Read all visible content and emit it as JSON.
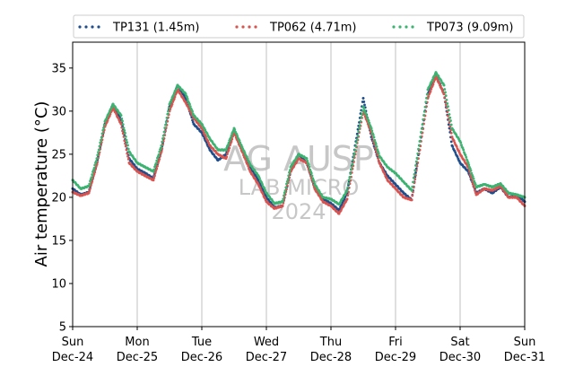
{
  "chart_data": {
    "type": "scatter",
    "ylabel": "Air temperature (°C)",
    "xlabel": "",
    "ylim": [
      5,
      38
    ],
    "yticks": [
      5,
      10,
      15,
      20,
      25,
      30,
      35
    ],
    "xlim": [
      "2023-12-24 00:00",
      "2023-12-31 00:00"
    ],
    "x_unit": "date-time",
    "xtick_labels": [
      {
        "x": "2023-12-24 00:00",
        "day": "Sun",
        "date": "Dec-24"
      },
      {
        "x": "2023-12-25 00:00",
        "day": "Mon",
        "date": "Dec-25"
      },
      {
        "x": "2023-12-26 00:00",
        "day": "Tue",
        "date": "Dec-26"
      },
      {
        "x": "2023-12-27 00:00",
        "day": "Wed",
        "date": "Dec-27"
      },
      {
        "x": "2023-12-28 00:00",
        "day": "Thu",
        "date": "Dec-28"
      },
      {
        "x": "2023-12-29 00:00",
        "day": "Fri",
        "date": "Dec-29"
      },
      {
        "x": "2023-12-30 00:00",
        "day": "Sat",
        "date": "Dec-30"
      },
      {
        "x": "2023-12-31 00:00",
        "day": "Sun",
        "date": "Dec-31"
      }
    ],
    "grid": "vertical at day boundaries",
    "legend_placement": "top, above plot",
    "watermark": [
      "AG AUSP",
      "LAB MICRO",
      "2024"
    ],
    "series": [
      {
        "name": "TP131 (1.45m)",
        "color": "#1f4e8c",
        "points": [
          [
            "2023-12-24 00:00",
            21.0
          ],
          [
            "2023-12-24 03:00",
            20.3
          ],
          [
            "2023-12-24 06:00",
            20.6
          ],
          [
            "2023-12-24 09:00",
            24.0
          ],
          [
            "2023-12-24 12:00",
            28.5
          ],
          [
            "2023-12-24 15:00",
            30.8
          ],
          [
            "2023-12-24 18:00",
            29.0
          ],
          [
            "2023-12-24 21:00",
            24.5
          ],
          [
            "2023-12-25 00:00",
            23.3
          ],
          [
            "2023-12-25 03:00",
            22.8
          ],
          [
            "2023-12-25 06:00",
            22.2
          ],
          [
            "2023-12-25 09:00",
            25.5
          ],
          [
            "2023-12-25 12:00",
            30.5
          ],
          [
            "2023-12-25 15:00",
            33.0
          ],
          [
            "2023-12-25 18:00",
            31.5
          ],
          [
            "2023-12-25 21:00",
            28.5
          ],
          [
            "2023-12-26 00:00",
            27.5
          ],
          [
            "2023-12-26 03:00",
            25.5
          ],
          [
            "2023-12-26 06:00",
            24.3
          ],
          [
            "2023-12-26 09:00",
            25.0
          ],
          [
            "2023-12-26 12:00",
            27.8
          ],
          [
            "2023-12-26 15:00",
            25.5
          ],
          [
            "2023-12-26 18:00",
            23.5
          ],
          [
            "2023-12-26 21:00",
            22.0
          ],
          [
            "2023-12-27 00:00",
            20.0
          ],
          [
            "2023-12-27 03:00",
            18.8
          ],
          [
            "2023-12-27 06:00",
            19.0
          ],
          [
            "2023-12-27 09:00",
            23.0
          ],
          [
            "2023-12-27 12:00",
            25.0
          ],
          [
            "2023-12-27 15:00",
            24.0
          ],
          [
            "2023-12-27 18:00",
            21.0
          ],
          [
            "2023-12-27 21:00",
            19.8
          ],
          [
            "2023-12-28 00:00",
            19.3
          ],
          [
            "2023-12-28 03:00",
            18.5
          ],
          [
            "2023-12-28 06:00",
            20.5
          ],
          [
            "2023-12-28 09:00",
            26.0
          ],
          [
            "2023-12-28 12:00",
            31.5
          ],
          [
            "2023-12-28 15:00",
            27.0
          ],
          [
            "2023-12-28 18:00",
            24.0
          ],
          [
            "2023-12-28 21:00",
            22.5
          ],
          [
            "2023-12-29 00:00",
            21.5
          ],
          [
            "2023-12-29 03:00",
            20.5
          ],
          [
            "2023-12-29 06:00",
            19.7
          ],
          [
            "2023-12-29 09:00",
            26.0
          ],
          [
            "2023-12-29 12:00",
            32.0
          ],
          [
            "2023-12-29 15:00",
            34.2
          ],
          [
            "2023-12-29 18:00",
            32.0
          ],
          [
            "2023-12-29 21:00",
            26.0
          ],
          [
            "2023-12-30 00:00",
            24.0
          ],
          [
            "2023-12-30 03:00",
            23.0
          ],
          [
            "2023-12-30 06:00",
            20.5
          ],
          [
            "2023-12-30 09:00",
            21.0
          ],
          [
            "2023-12-30 12:00",
            20.5
          ],
          [
            "2023-12-30 15:00",
            21.2
          ],
          [
            "2023-12-30 18:00",
            20.0
          ],
          [
            "2023-12-30 21:00",
            20.3
          ],
          [
            "2023-12-31 00:00",
            19.5
          ]
        ]
      },
      {
        "name": "TP062 (4.71m)",
        "color": "#d9534f",
        "points": [
          [
            "2023-12-24 00:00",
            20.6
          ],
          [
            "2023-12-24 03:00",
            20.2
          ],
          [
            "2023-12-24 06:00",
            20.5
          ],
          [
            "2023-12-24 09:00",
            23.8
          ],
          [
            "2023-12-24 12:00",
            28.2
          ],
          [
            "2023-12-24 15:00",
            30.4
          ],
          [
            "2023-12-24 18:00",
            28.5
          ],
          [
            "2023-12-24 21:00",
            24.0
          ],
          [
            "2023-12-25 00:00",
            23.0
          ],
          [
            "2023-12-25 03:00",
            22.5
          ],
          [
            "2023-12-25 06:00",
            22.0
          ],
          [
            "2023-12-25 09:00",
            25.3
          ],
          [
            "2023-12-25 12:00",
            30.0
          ],
          [
            "2023-12-25 15:00",
            32.5
          ],
          [
            "2023-12-25 18:00",
            31.0
          ],
          [
            "2023-12-25 21:00",
            29.2
          ],
          [
            "2023-12-26 00:00",
            28.0
          ],
          [
            "2023-12-26 03:00",
            26.0
          ],
          [
            "2023-12-26 06:00",
            25.0
          ],
          [
            "2023-12-26 09:00",
            24.5
          ],
          [
            "2023-12-26 12:00",
            27.5
          ],
          [
            "2023-12-26 15:00",
            25.3
          ],
          [
            "2023-12-26 18:00",
            23.0
          ],
          [
            "2023-12-26 21:00",
            21.5
          ],
          [
            "2023-12-27 00:00",
            19.5
          ],
          [
            "2023-12-27 03:00",
            18.7
          ],
          [
            "2023-12-27 06:00",
            19.0
          ],
          [
            "2023-12-27 09:00",
            23.0
          ],
          [
            "2023-12-27 12:00",
            24.5
          ],
          [
            "2023-12-27 15:00",
            24.0
          ],
          [
            "2023-12-27 18:00",
            21.0
          ],
          [
            "2023-12-27 21:00",
            19.5
          ],
          [
            "2023-12-28 00:00",
            19.0
          ],
          [
            "2023-12-28 03:00",
            18.1
          ],
          [
            "2023-12-28 06:00",
            19.8
          ],
          [
            "2023-12-28 09:00",
            25.0
          ],
          [
            "2023-12-28 12:00",
            30.0
          ],
          [
            "2023-12-28 15:00",
            27.5
          ],
          [
            "2023-12-28 18:00",
            24.0
          ],
          [
            "2023-12-28 21:00",
            22.0
          ],
          [
            "2023-12-29 00:00",
            21.0
          ],
          [
            "2023-12-29 03:00",
            20.0
          ],
          [
            "2023-12-29 06:00",
            19.7
          ],
          [
            "2023-12-29 09:00",
            25.5
          ],
          [
            "2023-12-29 12:00",
            31.5
          ],
          [
            "2023-12-29 15:00",
            34.0
          ],
          [
            "2023-12-29 18:00",
            32.0
          ],
          [
            "2023-12-29 21:00",
            27.0
          ],
          [
            "2023-12-30 00:00",
            25.0
          ],
          [
            "2023-12-30 03:00",
            23.5
          ],
          [
            "2023-12-30 06:00",
            20.3
          ],
          [
            "2023-12-30 09:00",
            21.0
          ],
          [
            "2023-12-30 12:00",
            20.8
          ],
          [
            "2023-12-30 15:00",
            21.3
          ],
          [
            "2023-12-30 18:00",
            20.0
          ],
          [
            "2023-12-30 21:00",
            20.0
          ],
          [
            "2023-12-31 00:00",
            19.0
          ]
        ]
      },
      {
        "name": "TP073 (9.09m)",
        "color": "#3cb371",
        "points": [
          [
            "2023-12-24 00:00",
            22.0
          ],
          [
            "2023-12-24 03:00",
            21.0
          ],
          [
            "2023-12-24 06:00",
            21.3
          ],
          [
            "2023-12-24 09:00",
            24.5
          ],
          [
            "2023-12-24 12:00",
            28.8
          ],
          [
            "2023-12-24 15:00",
            30.8
          ],
          [
            "2023-12-24 18:00",
            29.5
          ],
          [
            "2023-12-24 21:00",
            25.3
          ],
          [
            "2023-12-25 00:00",
            24.0
          ],
          [
            "2023-12-25 03:00",
            23.5
          ],
          [
            "2023-12-25 06:00",
            23.0
          ],
          [
            "2023-12-25 09:00",
            26.0
          ],
          [
            "2023-12-25 12:00",
            30.8
          ],
          [
            "2023-12-25 15:00",
            33.0
          ],
          [
            "2023-12-25 18:00",
            32.0
          ],
          [
            "2023-12-25 21:00",
            29.5
          ],
          [
            "2023-12-26 00:00",
            28.5
          ],
          [
            "2023-12-26 03:00",
            26.8
          ],
          [
            "2023-12-26 06:00",
            25.5
          ],
          [
            "2023-12-26 09:00",
            25.5
          ],
          [
            "2023-12-26 12:00",
            28.0
          ],
          [
            "2023-12-26 15:00",
            25.8
          ],
          [
            "2023-12-26 18:00",
            23.8
          ],
          [
            "2023-12-26 21:00",
            22.5
          ],
          [
            "2023-12-27 00:00",
            20.5
          ],
          [
            "2023-12-27 03:00",
            19.3
          ],
          [
            "2023-12-27 06:00",
            19.5
          ],
          [
            "2023-12-27 09:00",
            23.5
          ],
          [
            "2023-12-27 12:00",
            25.0
          ],
          [
            "2023-12-27 15:00",
            24.5
          ],
          [
            "2023-12-27 18:00",
            21.5
          ],
          [
            "2023-12-27 21:00",
            20.0
          ],
          [
            "2023-12-28 00:00",
            19.8
          ],
          [
            "2023-12-28 03:00",
            19.2
          ],
          [
            "2023-12-28 06:00",
            20.8
          ],
          [
            "2023-12-28 09:00",
            25.5
          ],
          [
            "2023-12-28 12:00",
            30.5
          ],
          [
            "2023-12-28 15:00",
            28.0
          ],
          [
            "2023-12-28 18:00",
            24.8
          ],
          [
            "2023-12-28 21:00",
            23.5
          ],
          [
            "2023-12-29 00:00",
            22.8
          ],
          [
            "2023-12-29 03:00",
            21.8
          ],
          [
            "2023-12-29 06:00",
            20.8
          ],
          [
            "2023-12-29 09:00",
            26.5
          ],
          [
            "2023-12-29 12:00",
            32.5
          ],
          [
            "2023-12-29 15:00",
            34.5
          ],
          [
            "2023-12-29 18:00",
            33.0
          ],
          [
            "2023-12-29 21:00",
            28.0
          ],
          [
            "2023-12-30 00:00",
            26.5
          ],
          [
            "2023-12-30 03:00",
            24.0
          ],
          [
            "2023-12-30 06:00",
            21.2
          ],
          [
            "2023-12-30 09:00",
            21.5
          ],
          [
            "2023-12-30 12:00",
            21.2
          ],
          [
            "2023-12-30 15:00",
            21.6
          ],
          [
            "2023-12-30 18:00",
            20.5
          ],
          [
            "2023-12-30 21:00",
            20.3
          ],
          [
            "2023-12-31 00:00",
            20.0
          ]
        ]
      }
    ]
  }
}
